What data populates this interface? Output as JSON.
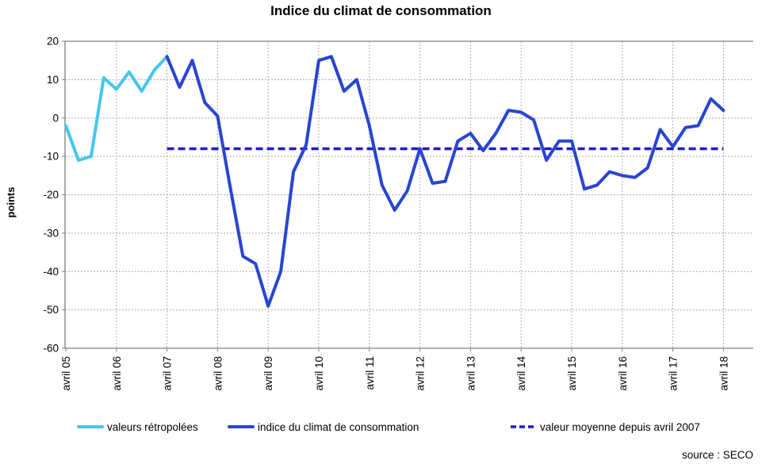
{
  "chart_data": {
    "type": "line",
    "title": "Indice du climat de consommation",
    "ylabel": "points",
    "source": "source : SECO",
    "ylim": [
      -60,
      20
    ],
    "y_ticks": [
      20,
      10,
      0,
      -10,
      -20,
      -30,
      -40,
      -50,
      -60
    ],
    "x_tick_labels": [
      "avril 05",
      "avril 06",
      "avril 07",
      "avril 08",
      "avril 09",
      "avril 10",
      "avril 11",
      "avril 12",
      "avril 13",
      "avril 14",
      "avril 15",
      "avril 16",
      "avril 17",
      "avril 18"
    ],
    "x_unit": "quarter",
    "grid": true,
    "legend_position": "bottom",
    "series": [
      {
        "name": "valeurs rétropolées",
        "type": "line",
        "color": "#45C6F0",
        "start_index": 0,
        "values": [
          -2,
          -11,
          -10,
          10.5,
          7.5,
          12,
          7,
          12.5,
          16
        ]
      },
      {
        "name": "indice du climat de consommation",
        "type": "line",
        "color": "#2845D1",
        "start_index": 8,
        "values": [
          16,
          8,
          15,
          4,
          0.5,
          -18,
          -36,
          -38,
          -49,
          -40,
          -14,
          -7,
          15,
          16,
          7,
          10,
          -2,
          -17.5,
          -24,
          -19,
          -8,
          -17,
          -16.5,
          -6,
          -4,
          -8.5,
          -4,
          2,
          1.5,
          -0.5,
          -11,
          -6,
          -6,
          -18.5,
          -17.5,
          -14,
          -15,
          -15.5,
          -13,
          -3,
          -7.5,
          -2.5,
          -2,
          5,
          2
        ]
      },
      {
        "name": "valeur moyenne depuis avril 2007",
        "type": "hline",
        "style": "dashed",
        "color": "#1B1BD1",
        "value": -8,
        "from_index": 8,
        "to_index": 52
      }
    ]
  }
}
